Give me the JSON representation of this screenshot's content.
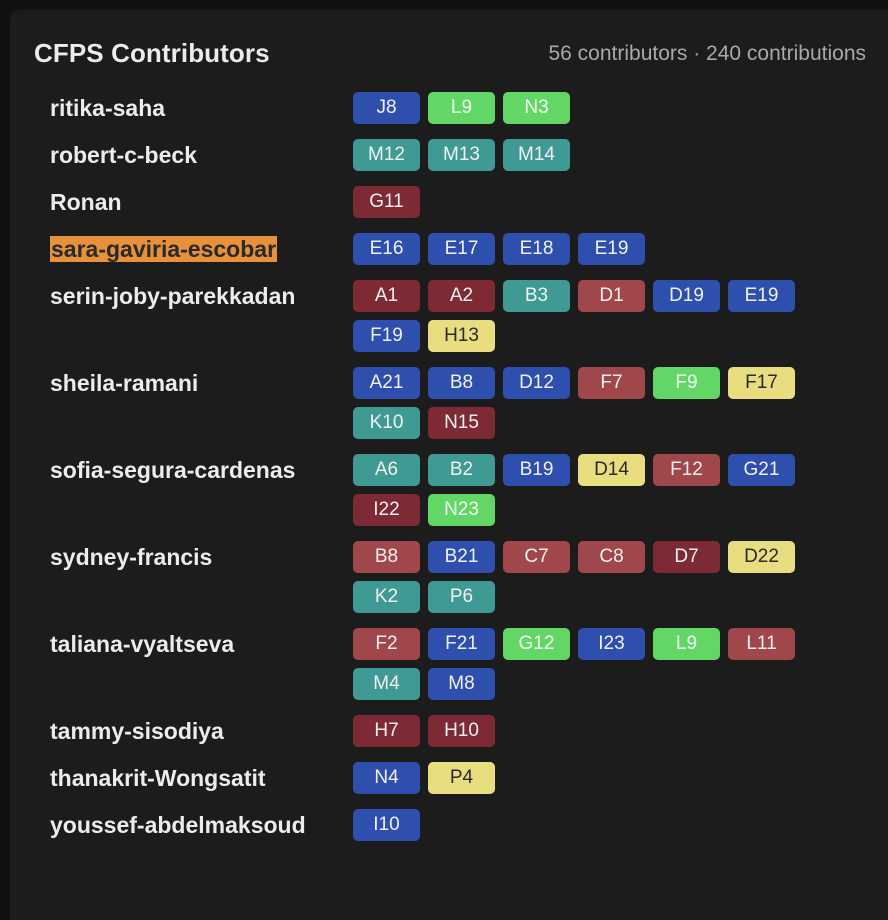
{
  "header": {
    "title": "CFPS Contributors",
    "summary": "56 contributors · 240 contributions"
  },
  "colors": {
    "blue": "#2f4fae",
    "teal": "#3e9a92",
    "maroon": "#7d2a35",
    "red": "#a0474c",
    "green": "#62d766",
    "yellow": "#e8dd7f",
    "highlight": "#e8913a"
  },
  "contributors": [
    {
      "name": "ritika-saha",
      "highlight": false,
      "tags": [
        {
          "label": "J8",
          "color": "blue"
        },
        {
          "label": "L9",
          "color": "green"
        },
        {
          "label": "N3",
          "color": "green"
        }
      ]
    },
    {
      "name": "robert-c-beck",
      "highlight": false,
      "tags": [
        {
          "label": "M12",
          "color": "teal"
        },
        {
          "label": "M13",
          "color": "teal"
        },
        {
          "label": "M14",
          "color": "teal"
        }
      ]
    },
    {
      "name": "Ronan",
      "highlight": false,
      "tags": [
        {
          "label": "G11",
          "color": "maroon"
        }
      ]
    },
    {
      "name": "sara-gaviria-escobar",
      "highlight": true,
      "tags": [
        {
          "label": "E16",
          "color": "blue"
        },
        {
          "label": "E17",
          "color": "blue"
        },
        {
          "label": "E18",
          "color": "blue"
        },
        {
          "label": "E19",
          "color": "blue"
        }
      ]
    },
    {
      "name": "serin-joby-parekkadan",
      "highlight": false,
      "tags": [
        {
          "label": "A1",
          "color": "maroon"
        },
        {
          "label": "A2",
          "color": "maroon"
        },
        {
          "label": "B3",
          "color": "teal"
        },
        {
          "label": "D1",
          "color": "red"
        },
        {
          "label": "D19",
          "color": "blue"
        },
        {
          "label": "E19",
          "color": "blue"
        },
        {
          "label": "F19",
          "color": "blue"
        },
        {
          "label": "H13",
          "color": "yellow"
        }
      ]
    },
    {
      "name": "sheila-ramani",
      "highlight": false,
      "tags": [
        {
          "label": "A21",
          "color": "blue"
        },
        {
          "label": "B8",
          "color": "blue"
        },
        {
          "label": "D12",
          "color": "blue"
        },
        {
          "label": "F7",
          "color": "red"
        },
        {
          "label": "F9",
          "color": "green"
        },
        {
          "label": "F17",
          "color": "yellow"
        },
        {
          "label": "K10",
          "color": "teal"
        },
        {
          "label": "N15",
          "color": "maroon"
        }
      ]
    },
    {
      "name": "sofia-segura-cardenas",
      "highlight": false,
      "tags": [
        {
          "label": "A6",
          "color": "teal"
        },
        {
          "label": "B2",
          "color": "teal"
        },
        {
          "label": "B19",
          "color": "blue"
        },
        {
          "label": "D14",
          "color": "yellow"
        },
        {
          "label": "F12",
          "color": "red"
        },
        {
          "label": "G21",
          "color": "blue"
        },
        {
          "label": "I22",
          "color": "maroon"
        },
        {
          "label": "N23",
          "color": "green"
        }
      ]
    },
    {
      "name": "sydney-francis",
      "highlight": false,
      "tags": [
        {
          "label": "B8",
          "color": "red"
        },
        {
          "label": "B21",
          "color": "blue"
        },
        {
          "label": "C7",
          "color": "red"
        },
        {
          "label": "C8",
          "color": "red"
        },
        {
          "label": "D7",
          "color": "maroon"
        },
        {
          "label": "D22",
          "color": "yellow"
        },
        {
          "label": "K2",
          "color": "teal"
        },
        {
          "label": "P6",
          "color": "teal"
        }
      ]
    },
    {
      "name": "taliana-vyaltseva",
      "highlight": false,
      "tags": [
        {
          "label": "F2",
          "color": "red"
        },
        {
          "label": "F21",
          "color": "blue"
        },
        {
          "label": "G12",
          "color": "green"
        },
        {
          "label": "I23",
          "color": "blue"
        },
        {
          "label": "L9",
          "color": "green"
        },
        {
          "label": "L11",
          "color": "red"
        },
        {
          "label": "M4",
          "color": "teal"
        },
        {
          "label": "M8",
          "color": "blue"
        }
      ]
    },
    {
      "name": "tammy-sisodiya",
      "highlight": false,
      "tags": [
        {
          "label": "H7",
          "color": "maroon"
        },
        {
          "label": "H10",
          "color": "maroon"
        }
      ]
    },
    {
      "name": "thanakrit-Wongsatit",
      "highlight": false,
      "tags": [
        {
          "label": "N4",
          "color": "blue"
        },
        {
          "label": "P4",
          "color": "yellow"
        }
      ]
    },
    {
      "name": "youssef-abdelmaksoud",
      "highlight": false,
      "tags": [
        {
          "label": "I10",
          "color": "blue"
        }
      ]
    }
  ]
}
